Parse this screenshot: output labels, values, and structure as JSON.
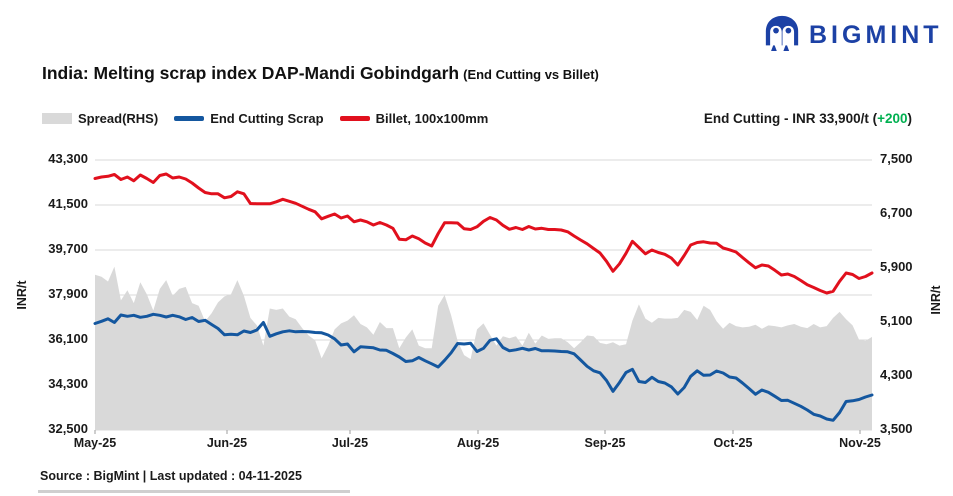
{
  "logo": {
    "text": "BIGMINT",
    "color": "#1c41a5"
  },
  "title": {
    "main": "India: Melting scrap index DAP-Mandi Gobindgarh",
    "sub": "(End Cutting vs Billet)"
  },
  "legend": [
    {
      "label": "Spread(RHS)",
      "type": "area",
      "color": "#d9d9d9"
    },
    {
      "label": "End Cutting Scrap",
      "type": "line",
      "color": "#14579f"
    },
    {
      "label": "Billet, 100x100mm",
      "type": "line",
      "color": "#e1101d"
    }
  ],
  "annotation": {
    "text": "End Cutting - INR 33,900/t (",
    "change": "+200",
    "close": ")",
    "change_color": "#00b050"
  },
  "footer": {
    "source": "Source : BigMint | Last updated : 04-11-2025"
  },
  "chart_data": {
    "type": "line",
    "title": "India: Melting scrap index DAP-Mandi Gobindgarh (End Cutting vs Billet)",
    "x_tick_labels": [
      "May-25",
      "Jun-25",
      "Jul-25",
      "Aug-25",
      "Sep-25",
      "Oct-25",
      "Nov-25"
    ],
    "y_axis_left": {
      "label": "INR/t",
      "min": 32500,
      "max": 43300,
      "tick_values": [
        43300,
        41500,
        39700,
        37900,
        36100,
        34300,
        32500
      ],
      "tick_labels": [
        "43,300",
        "41,500",
        "39,700",
        "37,900",
        "36,100",
        "34,300",
        "32,500"
      ]
    },
    "y_axis_right": {
      "label": "INR/t",
      "min": 3500,
      "max": 7500,
      "tick_values": [
        7500,
        6700,
        5900,
        5100,
        4300,
        3500
      ],
      "tick_labels": [
        "7,500",
        "6,700",
        "5,900",
        "5,100",
        "4,300",
        "3,500"
      ]
    },
    "grid": "horizontal",
    "legend_position": "top-left",
    "series": [
      {
        "name": "Billet, 100x100mm",
        "axis": "left",
        "color": "#e1101d",
        "last_value": 38780,
        "values": [
          42560,
          42620,
          42650,
          42720,
          42520,
          42620,
          42470,
          42700,
          42560,
          42400,
          42680,
          42740,
          42580,
          42620,
          42540,
          42380,
          42180,
          42000,
          41950,
          41950,
          41790,
          41840,
          42030,
          41950,
          41560,
          41550,
          41550,
          41550,
          41630,
          41730,
          41650,
          41570,
          41450,
          41330,
          41230,
          40950,
          41050,
          41140,
          40980,
          41060,
          40830,
          40900,
          40830,
          40700,
          40800,
          40700,
          40570,
          40130,
          40110,
          40260,
          40150,
          39980,
          39860,
          40360,
          40790,
          40790,
          40780,
          40550,
          40520,
          40630,
          40850,
          41000,
          40900,
          40690,
          40530,
          40600,
          40520,
          40640,
          40540,
          40570,
          40520,
          40520,
          40500,
          40430,
          40260,
          40100,
          39950,
          39760,
          39580,
          39250,
          38850,
          39150,
          39570,
          40050,
          39800,
          39550,
          39700,
          39600,
          39530,
          39380,
          39100,
          39480,
          39900,
          40000,
          40030,
          39980,
          39970,
          39780,
          39710,
          39620,
          39400,
          39190,
          38990,
          39100,
          39060,
          38890,
          38700,
          38740,
          38640,
          38480,
          38310,
          38200,
          38080,
          37980,
          38050,
          38450,
          38780,
          38720,
          38560,
          38640,
          38780
        ]
      },
      {
        "name": "End Cutting Scrap",
        "axis": "left",
        "color": "#14579f",
        "last_value": 33900,
        "values": [
          36760,
          36850,
          36950,
          36800,
          37100,
          37050,
          37090,
          37010,
          37050,
          37130,
          37090,
          37020,
          37090,
          37030,
          36920,
          37000,
          36840,
          36890,
          36720,
          36560,
          36310,
          36330,
          36310,
          36460,
          36400,
          36500,
          36800,
          36250,
          36350,
          36430,
          36470,
          36430,
          36440,
          36430,
          36400,
          36390,
          36300,
          36150,
          35900,
          35940,
          35630,
          35830,
          35810,
          35790,
          35700,
          35690,
          35560,
          35420,
          35240,
          35270,
          35400,
          35270,
          35150,
          35020,
          35290,
          35590,
          35960,
          35940,
          35970,
          35640,
          35770,
          36090,
          36150,
          35800,
          35670,
          35710,
          35770,
          35700,
          35760,
          35670,
          35670,
          35660,
          35640,
          35630,
          35550,
          35300,
          35050,
          34870,
          34790,
          34480,
          34050,
          34400,
          34800,
          34930,
          34440,
          34400,
          34610,
          34440,
          34380,
          34230,
          33940,
          34200,
          34650,
          34870,
          34690,
          34700,
          34860,
          34780,
          34620,
          34580,
          34380,
          34160,
          33930,
          34100,
          34010,
          33850,
          33680,
          33690,
          33570,
          33450,
          33300,
          33130,
          33060,
          32940,
          32890,
          33200,
          33640,
          33670,
          33720,
          33820,
          33900
        ]
      },
      {
        "name": "Spread(RHS)",
        "axis": "right",
        "color": "#d9d9d9",
        "style": "area",
        "derivation": "billet_minus_end_cutting"
      }
    ]
  }
}
